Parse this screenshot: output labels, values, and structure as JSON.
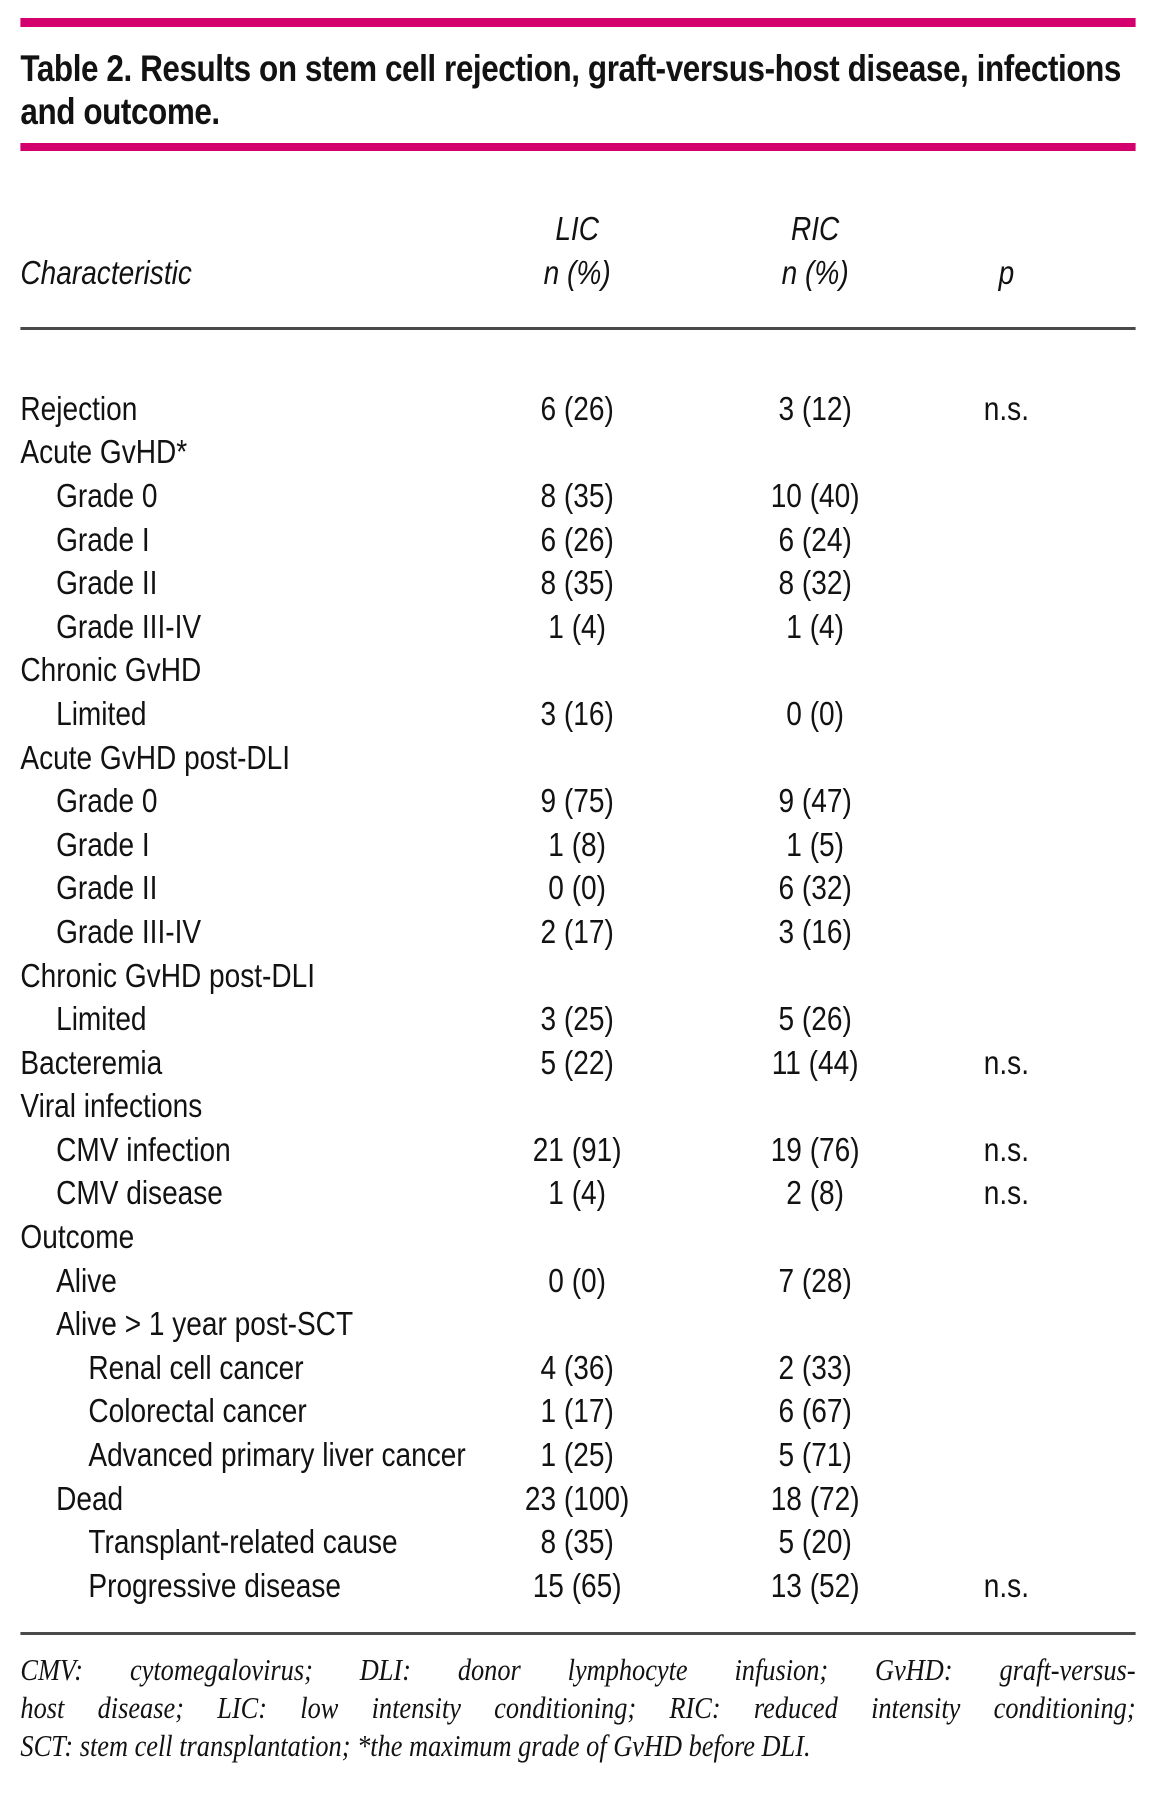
{
  "title": "Table 2. Results on stem cell rejection, graft-versus-host disease, infections and outcome.",
  "columns": {
    "characteristic": "Characteristic",
    "lic_name": "LIC",
    "lic_sub": "n (%)",
    "ric_name": "RIC",
    "ric_sub": "n (%)",
    "p": "p"
  },
  "rows": [
    {
      "label": "Rejection",
      "indent": 0,
      "lic": "6 (26)",
      "ric": "3 (12)",
      "p": "n.s."
    },
    {
      "label": "Acute GvHD*",
      "indent": 0,
      "lic": "",
      "ric": "",
      "p": ""
    },
    {
      "label": "Grade 0",
      "indent": 1,
      "lic": "8 (35)",
      "ric": "10 (40)",
      "p": ""
    },
    {
      "label": "Grade I",
      "indent": 1,
      "lic": "6 (26)",
      "ric": "6 (24)",
      "p": ""
    },
    {
      "label": "Grade II",
      "indent": 1,
      "lic": "8 (35)",
      "ric": "8 (32)",
      "p": ""
    },
    {
      "label": "Grade III-IV",
      "indent": 1,
      "lic": "1 (4)",
      "ric": "1 (4)",
      "p": ""
    },
    {
      "label": "Chronic GvHD",
      "indent": 0,
      "lic": "",
      "ric": "",
      "p": ""
    },
    {
      "label": "Limited",
      "indent": 1,
      "lic": "3 (16)",
      "ric": "0 (0)",
      "p": ""
    },
    {
      "label": "Acute GvHD post-DLI",
      "indent": 0,
      "lic": "",
      "ric": "",
      "p": ""
    },
    {
      "label": "Grade 0",
      "indent": 1,
      "lic": "9 (75)",
      "ric": "9 (47)",
      "p": ""
    },
    {
      "label": "Grade I",
      "indent": 1,
      "lic": "1 (8)",
      "ric": "1 (5)",
      "p": ""
    },
    {
      "label": "Grade II",
      "indent": 1,
      "lic": "0 (0)",
      "ric": "6 (32)",
      "p": ""
    },
    {
      "label": "Grade III-IV",
      "indent": 1,
      "lic": "2 (17)",
      "ric": "3 (16)",
      "p": ""
    },
    {
      "label": "Chronic GvHD post-DLI",
      "indent": 0,
      "lic": "",
      "ric": "",
      "p": ""
    },
    {
      "label": "Limited",
      "indent": 1,
      "lic": "3 (25)",
      "ric": "5 (26)",
      "p": ""
    },
    {
      "label": "Bacteremia",
      "indent": 0,
      "lic": "5 (22)",
      "ric": "11 (44)",
      "p": "n.s."
    },
    {
      "label": "Viral infections",
      "indent": 0,
      "lic": "",
      "ric": "",
      "p": ""
    },
    {
      "label": "CMV infection",
      "indent": 1,
      "lic": "21 (91)",
      "ric": "19 (76)",
      "p": "n.s."
    },
    {
      "label": "CMV disease",
      "indent": 1,
      "lic": "1 (4)",
      "ric": "2 (8)",
      "p": "n.s."
    },
    {
      "label": "Outcome",
      "indent": 0,
      "lic": "",
      "ric": "",
      "p": ""
    },
    {
      "label": "Alive",
      "indent": 1,
      "lic": "0 (0)",
      "ric": "7 (28)",
      "p": ""
    },
    {
      "label": "Alive > 1 year post-SCT",
      "indent": 1,
      "lic": "",
      "ric": "",
      "p": ""
    },
    {
      "label": "Renal cell cancer",
      "indent": 2,
      "lic": "4 (36)",
      "ric": "2 (33)",
      "p": ""
    },
    {
      "label": "Colorectal cancer",
      "indent": 2,
      "lic": "1 (17)",
      "ric": "6 (67)",
      "p": ""
    },
    {
      "label": "Advanced primary liver cancer",
      "indent": 2,
      "lic": "1 (25)",
      "ric": "5 (71)",
      "p": ""
    },
    {
      "label": "Dead",
      "indent": 1,
      "lic": "23 (100)",
      "ric": "18 (72)",
      "p": ""
    },
    {
      "label": "Transplant-related cause",
      "indent": 2,
      "lic": "8 (35)",
      "ric": "5 (20)",
      "p": ""
    },
    {
      "label": "Progressive disease",
      "indent": 2,
      "lic": "15 (65)",
      "ric": "13 (52)",
      "p": "n.s."
    }
  ],
  "footnote_lines": [
    "CMV: cytomegalovirus; DLI: donor lymphocyte infusion; GvHD: graft-versus-",
    "host disease; LIC: low intensity conditioning; RIC: reduced intensity conditioning;",
    "SCT: stem cell transplantation; *the maximum grade of GvHD before DLI."
  ],
  "colors": {
    "accent": "#d4006e",
    "rule": "#4a4a4a",
    "text": "#121212"
  }
}
